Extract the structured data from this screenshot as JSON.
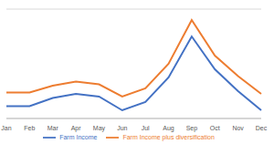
{
  "chart_data": {
    "type": "line",
    "categories": [
      "Jan",
      "Feb",
      "Mar",
      "Apr",
      "May",
      "Jun",
      "Jul",
      "Aug",
      "Sep",
      "Oct",
      "Nov",
      "Dec"
    ],
    "series": [
      {
        "name": "Farm Income",
        "color": "#4472c4",
        "values": [
          0.9,
          0.9,
          1.5,
          1.8,
          1.6,
          0.6,
          1.2,
          3.0,
          6.0,
          3.6,
          2.0,
          0.6
        ]
      },
      {
        "name": "Farm Income plus diversification",
        "color": "#ed7d31",
        "values": [
          1.9,
          1.9,
          2.4,
          2.7,
          2.5,
          1.6,
          2.2,
          4.0,
          7.2,
          4.6,
          3.1,
          1.8
        ]
      }
    ],
    "ylim": [
      0,
      8
    ],
    "yticks": [
      0,
      1,
      2,
      3,
      4,
      5,
      6,
      7,
      8
    ],
    "grid": true,
    "legend": "bottom",
    "tick_labels": "x"
  }
}
